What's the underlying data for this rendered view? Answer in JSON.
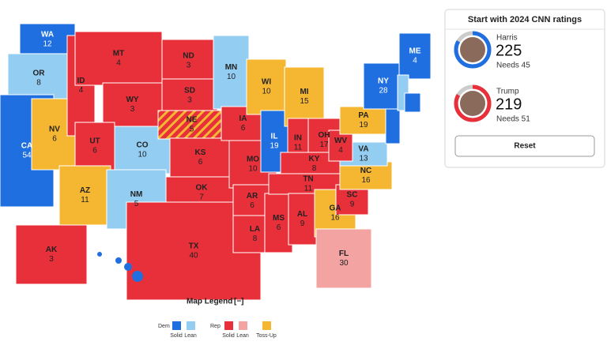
{
  "map": {
    "states": [
      {
        "abbr": "WA",
        "votes": 12,
        "color": "#1f6fe0"
      },
      {
        "abbr": "OR",
        "votes": 8,
        "color": "#93cdf2"
      },
      {
        "abbr": "CA",
        "votes": 54,
        "color": "#1f6fe0"
      },
      {
        "abbr": "NV",
        "votes": 6,
        "color": "#f5b731"
      },
      {
        "abbr": "ID",
        "votes": 4,
        "color": "#e8303a"
      },
      {
        "abbr": "MT",
        "votes": 4,
        "color": "#e8303a"
      },
      {
        "abbr": "WY",
        "votes": 3,
        "color": "#e8303a"
      },
      {
        "abbr": "UT",
        "votes": 6,
        "color": "#e8303a"
      },
      {
        "abbr": "CO",
        "votes": 10,
        "color": "#93cdf2"
      },
      {
        "abbr": "AZ",
        "votes": 11,
        "color": "#f5b731"
      },
      {
        "abbr": "NM",
        "votes": 5,
        "color": "#93cdf2"
      },
      {
        "abbr": "ND",
        "votes": 3,
        "color": "#e8303a"
      },
      {
        "abbr": "SD",
        "votes": 3,
        "color": "#e8303a"
      },
      {
        "abbr": "NE",
        "votes": 5,
        "color": "#e8303a",
        "stripe_color": "#f5b731"
      },
      {
        "abbr": "KS",
        "votes": 6,
        "color": "#e8303a"
      },
      {
        "abbr": "OK",
        "votes": 7,
        "color": "#e8303a"
      },
      {
        "abbr": "TX",
        "votes": 40,
        "color": "#e8303a"
      },
      {
        "abbr": "MN",
        "votes": 10,
        "color": "#93cdf2"
      },
      {
        "abbr": "IA",
        "votes": 6,
        "color": "#e8303a"
      },
      {
        "abbr": "MO",
        "votes": 10,
        "color": "#e8303a"
      },
      {
        "abbr": "AR",
        "votes": 6,
        "color": "#e8303a"
      },
      {
        "abbr": "LA",
        "votes": 8,
        "color": "#e8303a"
      },
      {
        "abbr": "WI",
        "votes": 10,
        "color": "#f5b731"
      },
      {
        "abbr": "IL",
        "votes": 19,
        "color": "#1f6fe0"
      },
      {
        "abbr": "MS",
        "votes": 6,
        "color": "#e8303a"
      },
      {
        "abbr": "MI",
        "votes": 15,
        "color": "#f5b731"
      },
      {
        "abbr": "IN",
        "votes": 11,
        "color": "#e8303a"
      },
      {
        "abbr": "OH",
        "votes": 17,
        "color": "#e8303a"
      },
      {
        "abbr": "KY",
        "votes": 8,
        "color": "#e8303a"
      },
      {
        "abbr": "TN",
        "votes": 11,
        "color": "#e8303a"
      },
      {
        "abbr": "AL",
        "votes": 9,
        "color": "#e8303a"
      },
      {
        "abbr": "GA",
        "votes": 16,
        "color": "#f5b731"
      },
      {
        "abbr": "FL",
        "votes": 30,
        "color": "#f4a3a3"
      },
      {
        "abbr": "SC",
        "votes": 9,
        "color": "#e8303a"
      },
      {
        "abbr": "NC",
        "votes": 16,
        "color": "#f5b731"
      },
      {
        "abbr": "VA",
        "votes": 13,
        "color": "#93cdf2"
      },
      {
        "abbr": "WV",
        "votes": 4,
        "color": "#e8303a"
      },
      {
        "abbr": "PA",
        "votes": 19,
        "color": "#f5b731"
      },
      {
        "abbr": "NY",
        "votes": 28,
        "color": "#1f6fe0"
      },
      {
        "abbr": "ME",
        "votes": 4,
        "color": "#1f6fe0"
      },
      {
        "abbr": "AK",
        "votes": 3,
        "color": "#e8303a"
      }
    ]
  },
  "panel": {
    "title": "Start with 2024 CNN ratings",
    "candidates": [
      {
        "name": "Harris",
        "votes": 225,
        "needs": "Needs 45",
        "color": "#1f6fe0"
      },
      {
        "name": "Trump",
        "votes": 219,
        "needs": "Needs 51",
        "color": "#e8303a"
      }
    ],
    "button": "Reset"
  },
  "legend": {
    "title": "Map Legend",
    "toggle": "[−]",
    "groups": [
      {
        "name": "Dem",
        "items": [
          {
            "label": "Solid",
            "color": "#1f6fe0"
          },
          {
            "label": "Lean",
            "color": "#93cdf2"
          }
        ]
      },
      {
        "name": "Rep",
        "items": [
          {
            "label": "Solid",
            "color": "#e8303a"
          },
          {
            "label": "Lean",
            "color": "#f4a3a3"
          }
        ]
      },
      {
        "name": null,
        "items": [
          {
            "label": "Toss-Up",
            "color": "#f5b731"
          }
        ]
      }
    ]
  }
}
